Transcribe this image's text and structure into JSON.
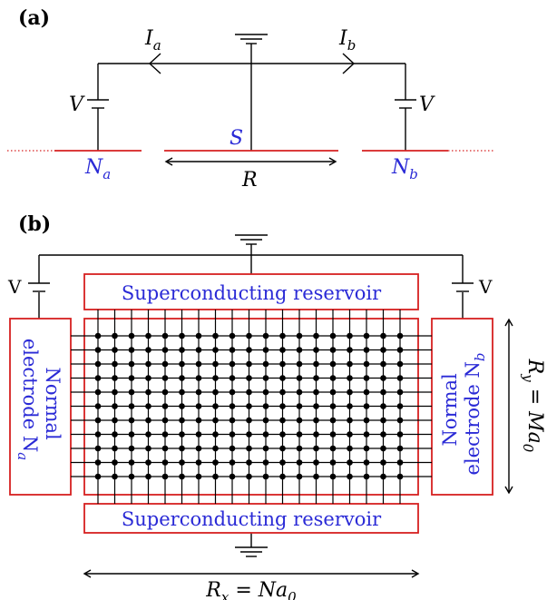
{
  "panels": {
    "a": {
      "label": "(a)",
      "current_a": "I",
      "current_a_sub": "a",
      "current_b": "I",
      "current_b_sub": "b",
      "voltage_left": "V",
      "voltage_right": "V",
      "superconductor": "S",
      "lead_a": "N",
      "lead_a_sub": "a",
      "lead_b": "N",
      "lead_b_sub": "b",
      "distance": "R"
    },
    "b": {
      "label": "(b)",
      "voltage_left": "V",
      "voltage_right": "V",
      "reservoir_top": "Superconducting reservoir",
      "reservoir_bottom": "Superconducting reservoir",
      "electrode_left": [
        "Normal",
        "electrode N",
        "a"
      ],
      "electrode_right": [
        "Normal",
        "electrode N",
        "b"
      ],
      "rx_label": "R",
      "rx_sub": "x",
      "rx_rest": " = Na",
      "rx_sub2": "0",
      "ry_label": "R",
      "ry_sub": "y",
      "ry_rest": " = Ma",
      "ry_sub2": "0"
    }
  },
  "colors": {
    "line": "#000000",
    "electrode": "#d62020",
    "text_blue": "#2a2ad6"
  }
}
